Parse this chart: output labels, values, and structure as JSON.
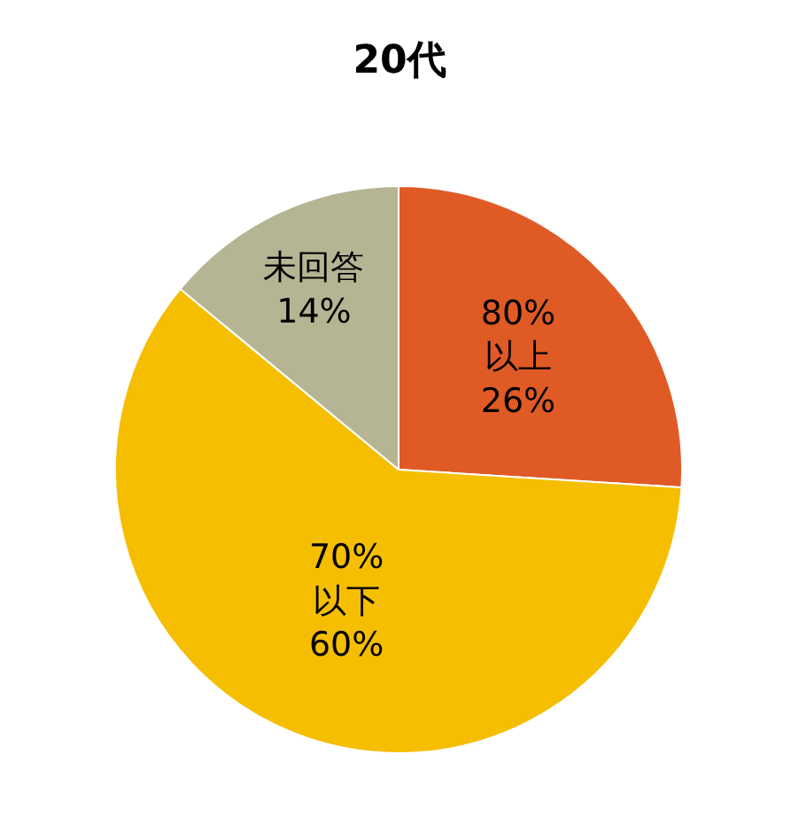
{
  "chart_data": {
    "type": "pie",
    "title": "20代",
    "categories": [
      "80%\n以上",
      "70%\n以下",
      "未回答"
    ],
    "values": [
      26,
      60,
      14
    ],
    "value_labels": [
      "26%",
      "60%",
      "14%"
    ],
    "colors": [
      "#e05a26",
      "#f5be00",
      "#b5b594"
    ],
    "legend": false
  }
}
